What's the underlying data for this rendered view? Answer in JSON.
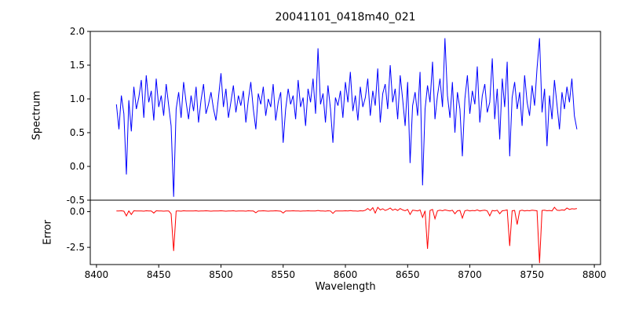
{
  "chart_data": {
    "type": "line",
    "title": "20041101_0418m40_021",
    "xlabel": "Wavelength",
    "xlim": [
      8395,
      8805
    ],
    "xticks": [
      8400,
      8450,
      8500,
      8550,
      8600,
      8650,
      8700,
      8750,
      8800
    ],
    "x_start": 8416,
    "x_step": 2,
    "grid": false,
    "legend": "none",
    "panels": [
      {
        "ylabel": "Spectrum",
        "ylim": [
          -0.5,
          2.0
        ],
        "yticks": [
          2.0,
          1.5,
          1.0,
          0.5,
          0.0,
          -0.5
        ],
        "color": "#0000ff",
        "values": [
          0.92,
          0.55,
          1.05,
          0.78,
          -0.12,
          0.98,
          0.52,
          1.18,
          0.85,
          1.02,
          1.28,
          0.72,
          1.35,
          0.95,
          1.12,
          0.68,
          1.3,
          0.88,
          1.05,
          0.75,
          1.22,
          0.9,
          0.6,
          -0.45,
          0.85,
          1.1,
          0.72,
          1.25,
          0.95,
          0.7,
          1.05,
          0.82,
          1.18,
          0.65,
          0.98,
          1.22,
          0.78,
          0.92,
          1.1,
          0.85,
          0.68,
          1.02,
          1.38,
          0.88,
          1.15,
          0.72,
          0.95,
          1.2,
          0.8,
          1.05,
          0.9,
          1.12,
          0.65,
          0.98,
          1.25,
          0.85,
          0.55,
          1.08,
          0.92,
          1.18,
          0.75,
          1.0,
          0.88,
          1.22,
          0.68,
          0.95,
          1.1,
          0.35,
          0.85,
          1.15,
          0.92,
          1.05,
          0.7,
          1.28,
          0.88,
          1.02,
          0.6,
          1.15,
          0.95,
          1.3,
          0.78,
          1.75,
          0.92,
          1.08,
          0.65,
          1.2,
          0.85,
          0.35,
          1.02,
          0.9,
          1.12,
          0.72,
          1.25,
          0.95,
          1.4,
          0.82,
          1.05,
          0.68,
          1.18,
          0.88,
          1.02,
          1.3,
          0.75,
          1.12,
          0.9,
          1.45,
          0.65,
          1.08,
          1.22,
          0.85,
          1.5,
          0.95,
          1.15,
          0.7,
          1.35,
          1.0,
          0.6,
          1.25,
          0.05,
          0.9,
          1.1,
          0.75,
          1.4,
          -0.28,
          0.85,
          1.2,
          0.95,
          1.55,
          0.7,
          1.05,
          1.3,
          0.88,
          1.9,
          1.05,
          0.72,
          1.25,
          0.5,
          1.1,
          0.85,
          0.15,
          1.0,
          1.35,
          0.78,
          1.12,
          0.92,
          1.48,
          0.65,
          1.05,
          1.22,
          0.8,
          0.95,
          1.6,
          0.7,
          1.15,
          0.4,
          1.3,
          0.88,
          1.55,
          0.15,
          1.02,
          1.25,
          0.85,
          1.1,
          0.6,
          1.35,
          0.95,
          0.75,
          1.2,
          0.9,
          1.45,
          1.9,
          0.8,
          1.15,
          0.3,
          1.05,
          0.7,
          1.28,
          0.92,
          0.55,
          1.1,
          0.85,
          1.18,
          0.95,
          1.3,
          0.75,
          0.55
        ]
      },
      {
        "ylabel": "Error",
        "ylim": [
          -3.7,
          0.8
        ],
        "yticks": [
          0.0,
          -2.5
        ],
        "color": "#ff0000",
        "values": [
          0.05,
          0.04,
          0.06,
          0.03,
          -0.3,
          0.05,
          -0.2,
          0.06,
          0.04,
          0.05,
          0.05,
          0.03,
          0.06,
          0.04,
          0.05,
          -0.1,
          0.06,
          0.04,
          0.05,
          0.03,
          0.05,
          0.04,
          -0.15,
          -2.75,
          0.04,
          0.05,
          0.03,
          0.06,
          0.04,
          0.05,
          0.04,
          0.05,
          0.06,
          0.03,
          0.05,
          0.04,
          0.06,
          0.05,
          0.03,
          0.04,
          0.05,
          0.04,
          0.06,
          0.05,
          0.03,
          0.05,
          0.04,
          0.06,
          0.03,
          0.05,
          0.04,
          0.05,
          0.03,
          0.06,
          0.05,
          0.04,
          -0.08,
          0.05,
          0.04,
          0.06,
          0.05,
          0.03,
          0.05,
          0.04,
          0.06,
          0.05,
          0.03,
          -0.1,
          0.05,
          0.04,
          0.05,
          0.06,
          0.04,
          0.05,
          0.03,
          0.05,
          0.04,
          0.06,
          0.05,
          0.04,
          0.05,
          0.08,
          0.04,
          0.05,
          0.03,
          0.06,
          0.04,
          -0.12,
          0.05,
          0.04,
          0.05,
          0.04,
          0.06,
          0.05,
          0.07,
          0.04,
          0.05,
          0.03,
          0.06,
          0.05,
          0.1,
          0.22,
          0.08,
          0.28,
          -0.1,
          0.3,
          0.12,
          0.2,
          0.08,
          0.15,
          0.25,
          0.1,
          0.18,
          0.08,
          0.22,
          0.12,
          0.06,
          0.15,
          -0.2,
          0.1,
          0.08,
          0.05,
          0.12,
          -0.4,
          0.06,
          -2.6,
          0.08,
          0.15,
          -0.5,
          0.06,
          0.1,
          0.06,
          0.12,
          0.08,
          0.05,
          0.1,
          -0.15,
          0.06,
          0.08,
          -0.45,
          0.06,
          0.1,
          0.05,
          0.08,
          0.06,
          0.12,
          0.04,
          0.08,
          0.1,
          0.05,
          -0.3,
          0.08,
          0.05,
          0.1,
          -0.15,
          0.06,
          0.08,
          0.12,
          -2.4,
          0.06,
          0.08,
          -0.9,
          0.06,
          0.1,
          0.05,
          0.08,
          0.06,
          0.1,
          0.08,
          0.06,
          -3.6,
          0.08,
          0.1,
          0.06,
          0.08,
          0.05,
          0.3,
          0.1,
          0.08,
          0.12,
          0.1,
          0.25,
          0.15,
          0.2,
          0.18,
          0.22
        ]
      }
    ]
  }
}
